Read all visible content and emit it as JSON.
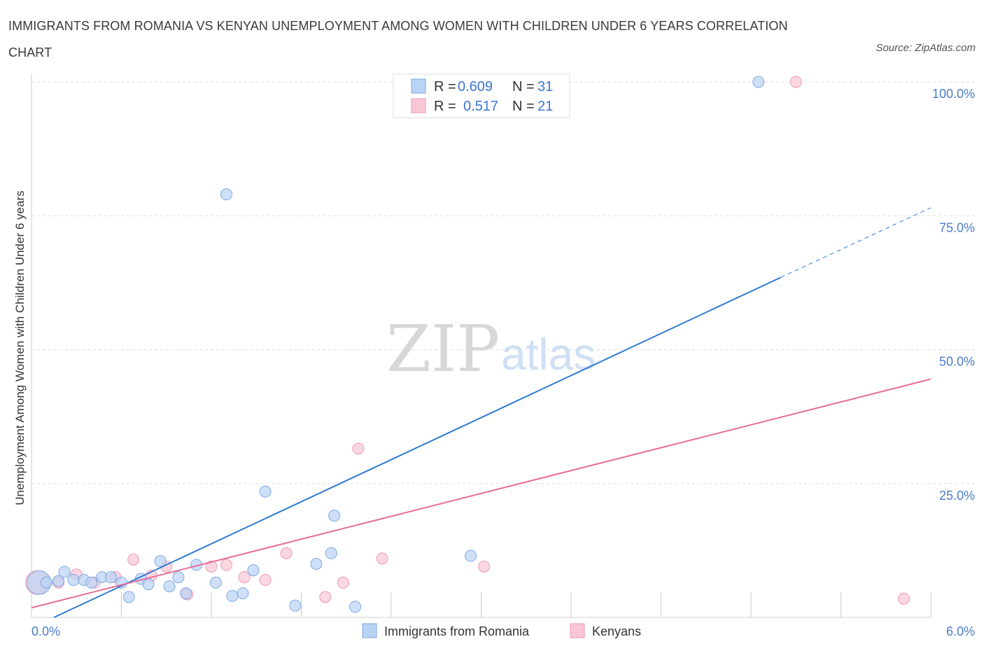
{
  "title": "IMMIGRANTS FROM ROMANIA VS KENYAN UNEMPLOYMENT AMONG WOMEN WITH CHILDREN UNDER 6 YEARS CORRELATION CHART",
  "source": "Source: ZipAtlas.com",
  "watermark": {
    "zip": "ZIP",
    "atlas": "atlas"
  },
  "colors": {
    "blue_fill": "#b9d3f5",
    "blue_stroke": "#7fa8e0",
    "blue_line": "#2f7ad4",
    "pink_fill": "#f9c6d6",
    "pink_stroke": "#ec9ab4",
    "pink_line": "#e86b97",
    "axis_text": "#4a7cc9",
    "grid": "#dddddd"
  },
  "legend": {
    "rows": [
      {
        "r_label": "R =",
        "r_value": "0.609",
        "n_label": "N =",
        "n_value": "31"
      },
      {
        "r_label": "R =",
        "r_value": "0.517",
        "n_label": "N =",
        "n_value": "21"
      }
    ]
  },
  "chart_data": {
    "type": "scatter",
    "title": "IMMIGRANTS FROM ROMANIA VS KENYAN UNEMPLOYMENT AMONG WOMEN WITH CHILDREN UNDER 6 YEARS CORRELATION CHART",
    "xlabel": "",
    "ylabel": "Unemployment Among Women with Children Under 6 years",
    "xlim": [
      0,
      6
    ],
    "ylim": [
      0,
      100
    ],
    "x_tick_labels": [
      "0.0%",
      "6.0%"
    ],
    "y_ticks": [
      25,
      50,
      75,
      100
    ],
    "y_tick_labels": [
      "25.0%",
      "50.0%",
      "75.0%",
      "100.0%"
    ],
    "grid": true,
    "series": [
      {
        "name": "Immigrants from Romania",
        "color": "#b9d3f5",
        "r": 0.609,
        "n": 31,
        "trend": {
          "x0": 0.15,
          "y0": 0,
          "x1": 5.0,
          "y1": 63.5,
          "dash_to_x": 6.0,
          "dash_to_y": 76.5
        },
        "points": [
          {
            "x": 0.05,
            "y": 6.5,
            "big": true
          },
          {
            "x": 0.1,
            "y": 6.5
          },
          {
            "x": 0.22,
            "y": 8.5
          },
          {
            "x": 0.28,
            "y": 7.0
          },
          {
            "x": 0.35,
            "y": 7.0
          },
          {
            "x": 0.4,
            "y": 6.5
          },
          {
            "x": 0.47,
            "y": 7.5
          },
          {
            "x": 0.53,
            "y": 7.5
          },
          {
            "x": 0.6,
            "y": 6.5
          },
          {
            "x": 0.65,
            "y": 3.8
          },
          {
            "x": 0.73,
            "y": 7.2
          },
          {
            "x": 0.78,
            "y": 6.2
          },
          {
            "x": 0.86,
            "y": 10.5
          },
          {
            "x": 0.92,
            "y": 5.8
          },
          {
            "x": 0.98,
            "y": 7.5
          },
          {
            "x": 1.03,
            "y": 4.5
          },
          {
            "x": 1.1,
            "y": 9.8
          },
          {
            "x": 1.23,
            "y": 6.5
          },
          {
            "x": 1.3,
            "y": 79.0
          },
          {
            "x": 1.34,
            "y": 4.0
          },
          {
            "x": 1.41,
            "y": 4.5
          },
          {
            "x": 1.48,
            "y": 8.8
          },
          {
            "x": 1.56,
            "y": 23.5
          },
          {
            "x": 1.76,
            "y": 2.2
          },
          {
            "x": 1.9,
            "y": 10.0
          },
          {
            "x": 2.0,
            "y": 12.0
          },
          {
            "x": 2.02,
            "y": 19.0
          },
          {
            "x": 2.16,
            "y": 2.0
          },
          {
            "x": 2.93,
            "y": 11.5
          },
          {
            "x": 4.85,
            "y": 100.0
          },
          {
            "x": 0.18,
            "y": 6.8
          }
        ]
      },
      {
        "name": "Kenyans",
        "color": "#f9c6d6",
        "r": 0.517,
        "n": 21,
        "trend": {
          "x0": 0.0,
          "y0": 1.8,
          "x1": 6.0,
          "y1": 44.5
        },
        "points": [
          {
            "x": 0.04,
            "y": 6.5,
            "big": true
          },
          {
            "x": 0.18,
            "y": 6.5
          },
          {
            "x": 0.3,
            "y": 8.0
          },
          {
            "x": 0.42,
            "y": 6.5
          },
          {
            "x": 0.56,
            "y": 7.5
          },
          {
            "x": 0.68,
            "y": 10.8
          },
          {
            "x": 0.8,
            "y": 7.8
          },
          {
            "x": 0.9,
            "y": 9.5
          },
          {
            "x": 1.04,
            "y": 4.3
          },
          {
            "x": 1.2,
            "y": 9.5
          },
          {
            "x": 1.3,
            "y": 9.8
          },
          {
            "x": 1.42,
            "y": 7.5
          },
          {
            "x": 1.56,
            "y": 7.0
          },
          {
            "x": 1.7,
            "y": 12.0
          },
          {
            "x": 1.96,
            "y": 3.8
          },
          {
            "x": 2.08,
            "y": 6.5
          },
          {
            "x": 2.18,
            "y": 31.5
          },
          {
            "x": 2.34,
            "y": 11.0
          },
          {
            "x": 3.02,
            "y": 9.5
          },
          {
            "x": 5.1,
            "y": 100.0
          },
          {
            "x": 5.82,
            "y": 3.5
          }
        ]
      }
    ]
  }
}
